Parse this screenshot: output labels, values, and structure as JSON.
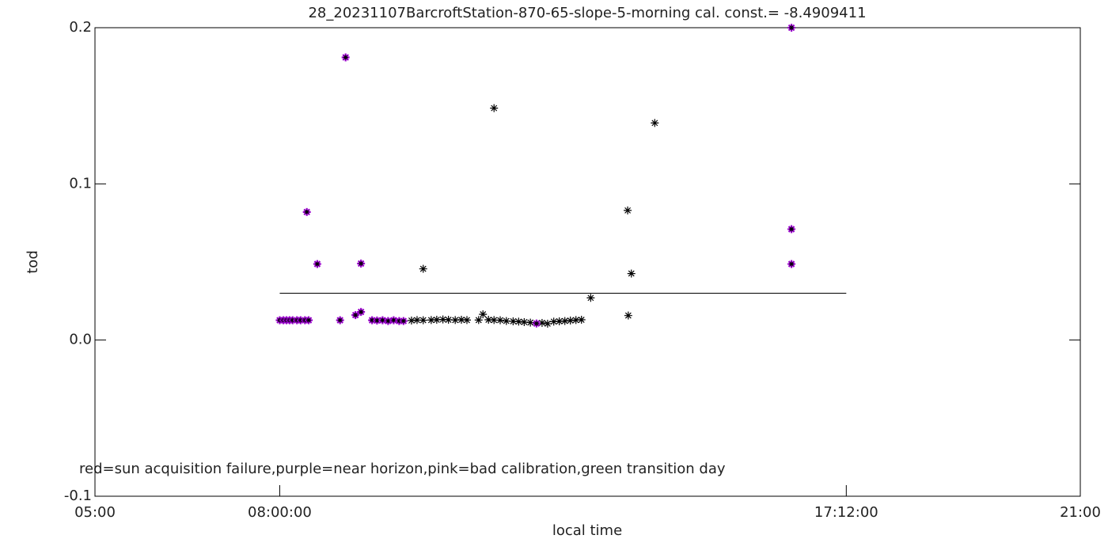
{
  "chart_data": {
    "type": "scatter",
    "title": "28_20231107BarcroftStation-870-65-slope-5-morning cal. const.= -8.4909411",
    "x_label": "local time",
    "y_label": "tod",
    "annotation": "red=sun acquisition failure,purple=near horizon,pink=bad calibration,green transition day",
    "xlim": [
      5,
      21
    ],
    "xticks": [
      {
        "value": 5,
        "label": "05:00"
      },
      {
        "value": 8,
        "label": "08:00:00"
      },
      {
        "value": 17.2,
        "label": "17:12:00"
      },
      {
        "value": 21,
        "label": "21:00"
      }
    ],
    "ylim": [
      -0.1,
      0.2
    ],
    "yticks": [
      {
        "value": -0.1,
        "label": "-0.1"
      },
      {
        "value": 0,
        "label": "0.0"
      },
      {
        "value": 0.1,
        "label": "0.1"
      },
      {
        "value": 0.2,
        "label": "0.2"
      }
    ],
    "reference_lines": [
      {
        "x": [
          8,
          17.2
        ],
        "y": 0.03,
        "color": "#000000"
      }
    ],
    "series": [
      {
        "color": "#000000",
        "x": [
          10.14,
          10.23,
          10.33,
          10.33,
          10.46,
          10.55,
          10.65,
          10.74,
          10.85,
          10.95,
          11.04,
          11.23,
          11.3,
          11.39,
          11.48,
          11.48,
          11.58,
          11.68,
          11.79,
          11.88,
          11.97,
          12.07,
          12.26,
          12.35,
          12.45,
          12.54,
          12.63,
          12.72,
          12.81,
          12.9,
          13.05,
          13.65,
          13.66,
          13.71,
          14.09
        ],
        "values": [
          0.0125,
          0.0128,
          0.0127,
          0.0456,
          0.0128,
          0.013,
          0.0132,
          0.013,
          0.0128,
          0.013,
          0.0128,
          0.0128,
          0.0165,
          0.013,
          0.0128,
          0.1485,
          0.0127,
          0.0122,
          0.012,
          0.0118,
          0.0115,
          0.0112,
          0.011,
          0.0105,
          0.0118,
          0.012,
          0.0122,
          0.0125,
          0.0128,
          0.013,
          0.027,
          0.083,
          0.0157,
          0.0426,
          0.139
        ]
      },
      {
        "color": "#9900cc",
        "x": [
          8.0,
          8.06,
          8.11,
          8.16,
          8.21,
          8.28,
          8.34,
          8.41,
          8.44,
          8.47,
          8.61,
          8.98,
          9.07,
          9.23,
          9.32,
          9.32,
          9.5,
          9.58,
          9.67,
          9.76,
          9.85,
          9.94,
          10.01,
          12.17,
          16.31,
          16.31,
          16.31
        ],
        "values": [
          0.0127,
          0.0127,
          0.0127,
          0.0127,
          0.0127,
          0.0127,
          0.0127,
          0.0127,
          0.082,
          0.0127,
          0.0487,
          0.0127,
          0.181,
          0.016,
          0.018,
          0.049,
          0.0127,
          0.0125,
          0.0127,
          0.0122,
          0.0127,
          0.0122,
          0.0122,
          0.0106,
          0.2,
          0.071,
          0.0487
        ]
      }
    ]
  }
}
